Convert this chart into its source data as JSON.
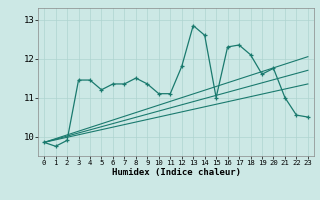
{
  "xlabel": "Humidex (Indice chaleur)",
  "background_color": "#cce8e5",
  "line_color": "#1a7a6e",
  "grid_color": "#afd4d0",
  "xlim": [
    -0.5,
    23.5
  ],
  "ylim": [
    9.5,
    13.3
  ],
  "yticks": [
    10,
    11,
    12,
    13
  ],
  "xticks": [
    0,
    1,
    2,
    3,
    4,
    5,
    6,
    7,
    8,
    9,
    10,
    11,
    12,
    13,
    14,
    15,
    16,
    17,
    18,
    19,
    20,
    21,
    22,
    23
  ],
  "curve1_x": [
    0,
    1,
    2,
    3,
    4,
    5,
    6,
    7,
    8,
    9,
    10,
    11,
    12,
    13,
    14,
    15,
    16,
    17,
    18,
    19,
    20,
    21,
    22,
    23
  ],
  "curve1_y": [
    9.85,
    9.75,
    9.9,
    11.45,
    11.45,
    11.2,
    11.35,
    11.35,
    11.5,
    11.35,
    11.1,
    11.1,
    11.8,
    12.85,
    12.6,
    11.0,
    12.3,
    12.35,
    12.1,
    11.6,
    11.75,
    11.0,
    10.55,
    10.5
  ],
  "line1_x": [
    0,
    23
  ],
  "line1_y": [
    9.85,
    12.05
  ],
  "line2_x": [
    0,
    23
  ],
  "line2_y": [
    9.85,
    11.35
  ],
  "line3_x": [
    0,
    23
  ],
  "line3_y": [
    9.85,
    11.7
  ]
}
